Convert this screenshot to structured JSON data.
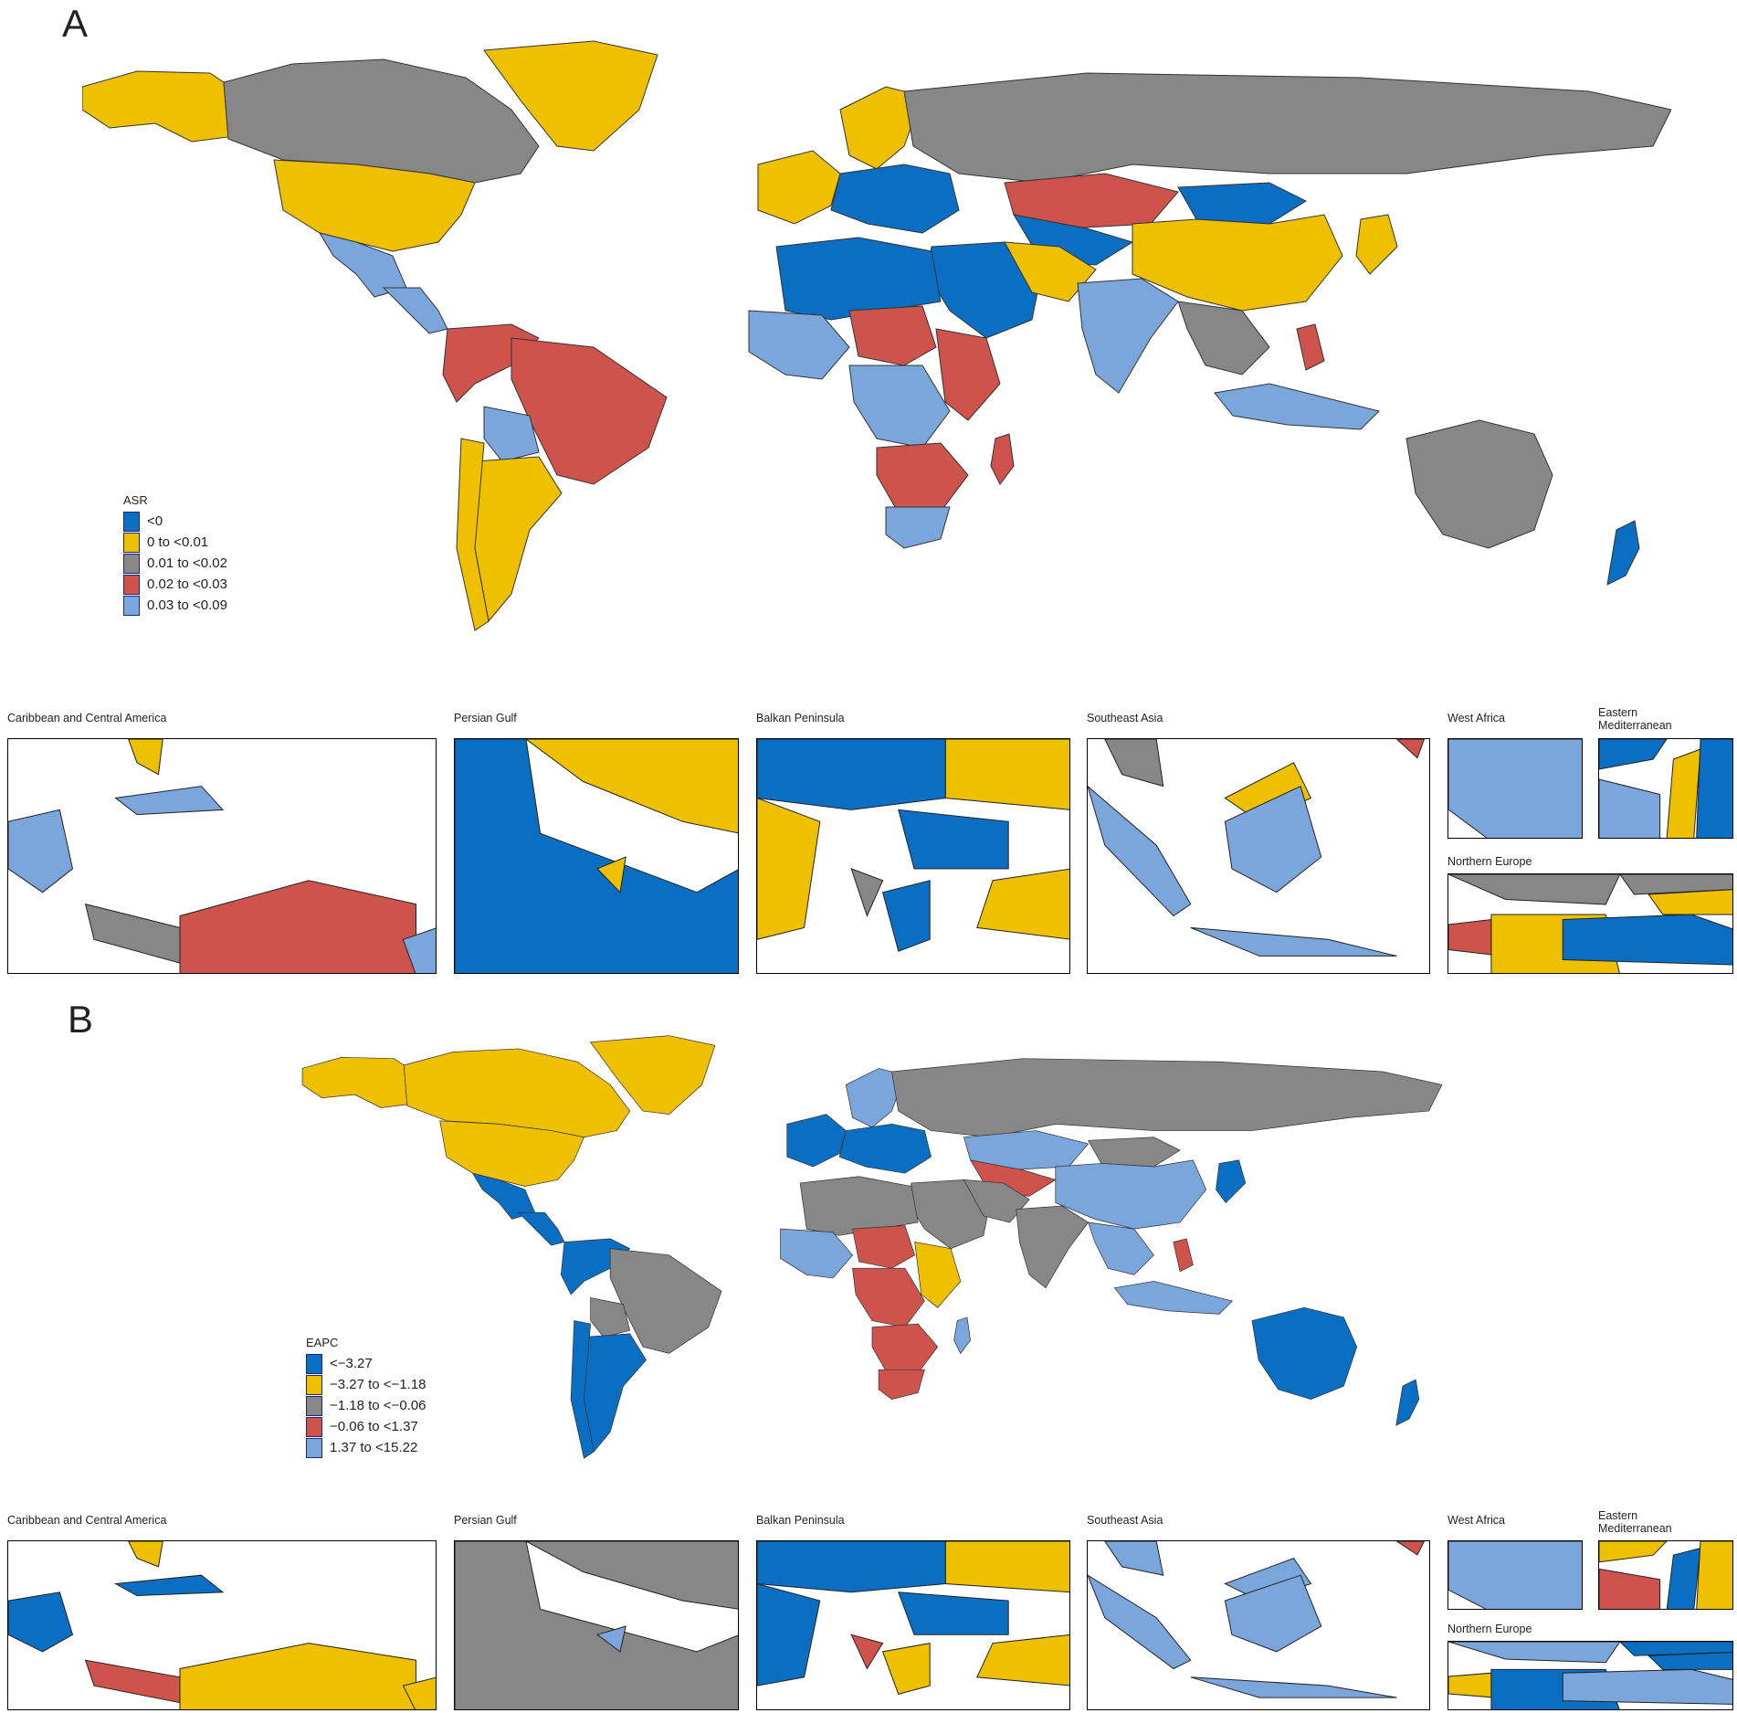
{
  "colors": {
    "blue": "#0a6fc2",
    "yellow": "#efc000",
    "gray": "#878787",
    "red": "#cd534c",
    "lightblue": "#7aa6dc",
    "border": "#333333"
  },
  "panels": [
    {
      "letter": "A",
      "legend": {
        "title": "ASR",
        "items": [
          {
            "label": "<0",
            "color": "#0a6fc2"
          },
          {
            "label": "0 to <0.01",
            "color": "#efc000"
          },
          {
            "label": "0.01 to <0.02",
            "color": "#878787"
          },
          {
            "label": "0.02 to <0.03",
            "color": "#cd534c"
          },
          {
            "label": "0.03 to <0.09",
            "color": "#7aa6dc"
          }
        ]
      },
      "regions": {
        "greenland": "yellow",
        "canada": "gray",
        "alaska": "yellow",
        "usa": "yellow",
        "mexico": "lightblue",
        "central_america": "lightblue",
        "south_america_north": "red",
        "brazil": "red",
        "bolivia": "lightblue",
        "argentina": "yellow",
        "chile": "yellow",
        "russia": "gray",
        "western_europe": "yellow",
        "eastern_europe": "blue",
        "scandinavia": "yellow",
        "north_africa": "blue",
        "west_africa": "lightblue",
        "sahel": "red",
        "central_africa": "lightblue",
        "east_africa": "red",
        "southern_africa": "red",
        "south_africa": "lightblue",
        "madagascar": "red",
        "middle_east": "blue",
        "iran": "yellow",
        "kazakhstan": "red",
        "central_asia": "blue",
        "china": "yellow",
        "mongolia": "blue",
        "india": "lightblue",
        "southeast_asia": "gray",
        "philippines": "red",
        "indonesia": "lightblue",
        "japan": "yellow",
        "australia": "gray",
        "new_zealand": "blue"
      },
      "insets": {
        "caribbean": {
          "title": "Caribbean and Central America",
          "fills": [
            "yellow",
            "lightblue",
            "red",
            "gray",
            "lightblue",
            "lightblue"
          ]
        },
        "persian_gulf": {
          "title": "Persian Gulf",
          "fills": [
            "blue",
            "yellow",
            "yellow"
          ]
        },
        "balkan": {
          "title": "Balkan Peninsula",
          "fills": [
            "blue",
            "yellow",
            "yellow",
            "blue",
            "gray",
            "yellow",
            "blue"
          ]
        },
        "southeast_asia": {
          "title": "Southeast Asia",
          "fills": [
            "lightblue",
            "yellow",
            "lightblue",
            "lightblue",
            "gray",
            "red"
          ]
        },
        "west_africa": {
          "title": "West Africa",
          "fills": [
            "lightblue"
          ]
        },
        "eastern_med": {
          "title": "Eastern Mediterranean",
          "fills": [
            "blue",
            "yellow",
            "blue",
            "lightblue"
          ]
        },
        "northern_europe": {
          "title": "Northern Europe",
          "fills": [
            "gray",
            "red",
            "yellow",
            "blue",
            "yellow",
            "gray"
          ]
        }
      }
    },
    {
      "letter": "B",
      "legend": {
        "title": "EAPC",
        "items": [
          {
            "label": "<−3.27",
            "color": "#0a6fc2"
          },
          {
            "label": "−3.27 to <−1.18",
            "color": "#efc000"
          },
          {
            "label": "−1.18 to <−0.06",
            "color": "#878787"
          },
          {
            "label": "−0.06 to <1.37",
            "color": "#cd534c"
          },
          {
            "label": "1.37 to <15.22",
            "color": "#7aa6dc"
          }
        ]
      },
      "regions": {
        "greenland": "yellow",
        "canada": "yellow",
        "alaska": "yellow",
        "usa": "yellow",
        "mexico": "blue",
        "central_america": "blue",
        "south_america_north": "blue",
        "brazil": "gray",
        "bolivia": "gray",
        "argentina": "blue",
        "chile": "blue",
        "russia": "gray",
        "western_europe": "blue",
        "eastern_europe": "blue",
        "scandinavia": "lightblue",
        "north_africa": "gray",
        "west_africa": "lightblue",
        "sahel": "red",
        "central_africa": "red",
        "east_africa": "yellow",
        "southern_africa": "red",
        "south_africa": "red",
        "madagascar": "lightblue",
        "middle_east": "gray",
        "iran": "gray",
        "kazakhstan": "lightblue",
        "central_asia": "red",
        "china": "lightblue",
        "mongolia": "gray",
        "india": "gray",
        "southeast_asia": "lightblue",
        "philippines": "red",
        "indonesia": "lightblue",
        "japan": "blue",
        "australia": "blue",
        "new_zealand": "blue"
      },
      "insets": {
        "caribbean": {
          "title": "Caribbean and Central America",
          "fills": [
            "yellow",
            "blue",
            "yellow",
            "red",
            "blue",
            "yellow"
          ]
        },
        "persian_gulf": {
          "title": "Persian Gulf",
          "fills": [
            "gray",
            "gray",
            "lightblue"
          ]
        },
        "balkan": {
          "title": "Balkan Peninsula",
          "fills": [
            "blue",
            "yellow",
            "blue",
            "blue",
            "red",
            "yellow",
            "yellow"
          ]
        },
        "southeast_asia": {
          "title": "Southeast Asia",
          "fills": [
            "lightblue",
            "lightblue",
            "lightblue",
            "lightblue",
            "lightblue",
            "red"
          ]
        },
        "west_africa": {
          "title": "West Africa",
          "fills": [
            "lightblue"
          ]
        },
        "eastern_med": {
          "title": "Eastern Mediterranean",
          "fills": [
            "yellow",
            "blue",
            "yellow",
            "red"
          ]
        },
        "northern_europe": {
          "title": "Northern Europe",
          "fills": [
            "lightblue",
            "yellow",
            "blue",
            "lightblue",
            "blue",
            "blue"
          ]
        }
      }
    }
  ]
}
